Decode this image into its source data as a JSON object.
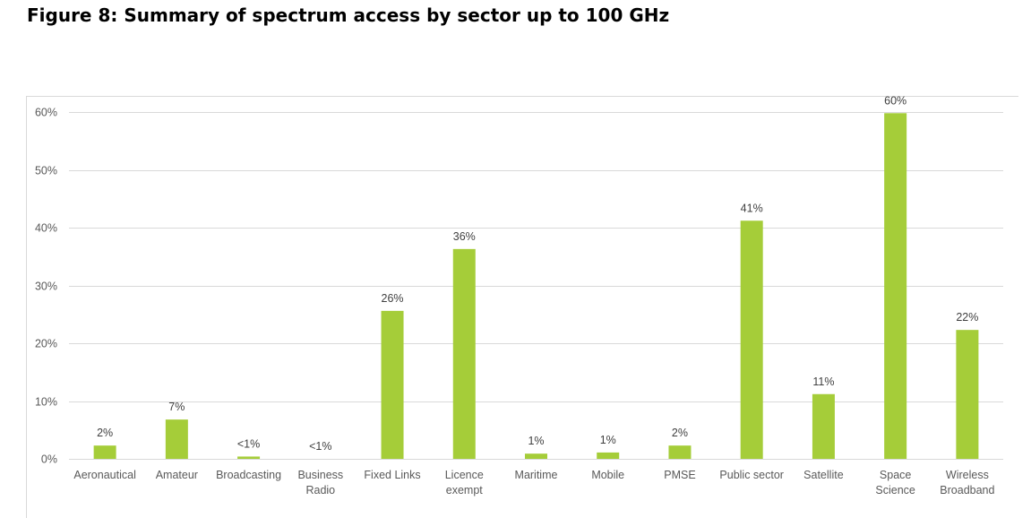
{
  "title": "Figure 8: Summary of spectrum access by sector up to 100 GHz",
  "colors": {
    "bar": "#a5cd39",
    "grid": "#d9d9d9",
    "axis_text": "#595959"
  },
  "chart_data": {
    "type": "bar",
    "categories": [
      [
        "Aeronautical"
      ],
      [
        "Amateur"
      ],
      [
        "Broadcasting"
      ],
      [
        "Business",
        "Radio"
      ],
      [
        "Fixed Links"
      ],
      [
        "Licence",
        "exempt"
      ],
      [
        "Maritime"
      ],
      [
        "Mobile"
      ],
      [
        "PMSE"
      ],
      [
        "Public sector"
      ],
      [
        "Satellite"
      ],
      [
        "Space",
        "Science"
      ],
      [
        "Wireless",
        "Broadband"
      ]
    ],
    "values": [
      2.3,
      6.8,
      0.4,
      0,
      25.6,
      36.3,
      0.9,
      1.1,
      2.3,
      41.2,
      11.2,
      59.8,
      22.3
    ],
    "data_labels": [
      "2%",
      "7%",
      "<1%",
      "<1%",
      "26%",
      "36%",
      "1%",
      "1%",
      "2%",
      "41%",
      "11%",
      "60%",
      "22%"
    ],
    "ylim": [
      0,
      60
    ],
    "yticks": [
      0,
      10,
      20,
      30,
      40,
      50,
      60
    ],
    "ytick_labels": [
      "0%",
      "10%",
      "20%",
      "30%",
      "40%",
      "50%",
      "60%"
    ],
    "grid": true,
    "legend": "none",
    "xlabel": "",
    "ylabel": ""
  }
}
